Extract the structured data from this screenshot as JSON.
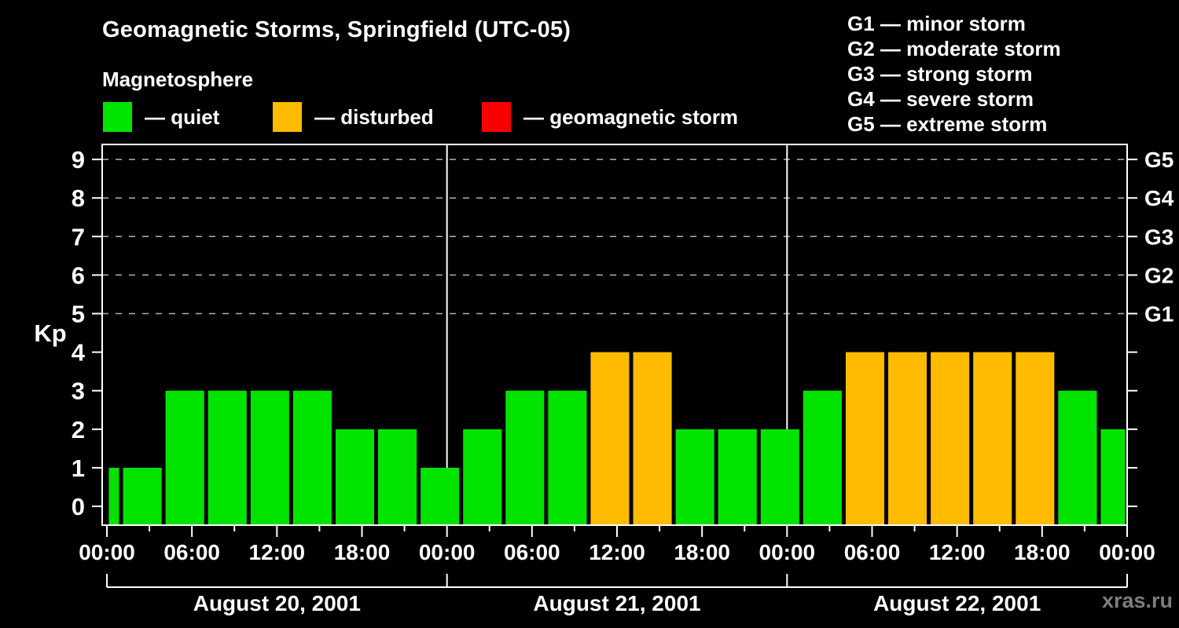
{
  "header": {
    "title": "Geomagnetic Storms, Springfield (UTC-05)",
    "subtitle": "Magnetosphere",
    "watermark": "xras.ru"
  },
  "legend": {
    "items": [
      {
        "label": "— quiet",
        "state": "quiet",
        "color": "#00e400"
      },
      {
        "label": "— disturbed",
        "state": "disturbed",
        "color": "#ffbb00"
      },
      {
        "label": "— geomagnetic storm",
        "state": "storm",
        "color": "#f80000"
      }
    ]
  },
  "g_scale_legend": {
    "lines": [
      "G1 — minor storm",
      "G2 — moderate storm",
      "G3 — strong storm",
      "G4 — severe storm",
      "G5 — extreme storm"
    ]
  },
  "chart_data": {
    "type": "bar",
    "title": "Geomagnetic Storms, Springfield (UTC-05)",
    "ylabel": "Kp",
    "ylim": [
      0,
      9
    ],
    "x_hours_range": [
      0,
      72
    ],
    "grid": "dashed horizontal lines at Kp 5-9 only",
    "legend_position": "top",
    "y_ticks": [
      0,
      1,
      2,
      3,
      4,
      5,
      6,
      7,
      8,
      9
    ],
    "g_level_gridlines": [
      5,
      6,
      7,
      8,
      9
    ],
    "right_axis_labels": [
      {
        "kp": 5,
        "label": "G1"
      },
      {
        "kp": 6,
        "label": "G2"
      },
      {
        "kp": 7,
        "label": "G3"
      },
      {
        "kp": 8,
        "label": "G4"
      },
      {
        "kp": 9,
        "label": "G5"
      }
    ],
    "x_ticks": [
      {
        "hour": 0,
        "label": "00:00"
      },
      {
        "hour": 6,
        "label": "06:00"
      },
      {
        "hour": 12,
        "label": "12:00"
      },
      {
        "hour": 18,
        "label": "18:00"
      },
      {
        "hour": 24,
        "label": "00:00"
      },
      {
        "hour": 30,
        "label": "06:00"
      },
      {
        "hour": 36,
        "label": "12:00"
      },
      {
        "hour": 42,
        "label": "18:00"
      },
      {
        "hour": 48,
        "label": "00:00"
      },
      {
        "hour": 54,
        "label": "06:00"
      },
      {
        "hour": 60,
        "label": "12:00"
      },
      {
        "hour": 66,
        "label": "18:00"
      },
      {
        "hour": 72,
        "label": "00:00"
      }
    ],
    "minor_tick_hours": [
      3,
      9,
      15,
      21,
      27,
      33,
      39,
      45,
      51,
      57,
      63,
      69
    ],
    "day_boundaries_hours": [
      24,
      48
    ],
    "days": [
      {
        "label": "August 20, 2001",
        "start_hour": 0,
        "end_hour": 24
      },
      {
        "label": "August 21, 2001",
        "start_hour": 24,
        "end_hour": 48
      },
      {
        "label": "August 22, 2001",
        "start_hour": 48,
        "end_hour": 72
      }
    ],
    "bars": [
      {
        "start_hour": 0,
        "end_hour": 1,
        "kp": 1,
        "state": "quiet"
      },
      {
        "start_hour": 1,
        "end_hour": 4,
        "kp": 1,
        "state": "quiet"
      },
      {
        "start_hour": 4,
        "end_hour": 7,
        "kp": 3,
        "state": "quiet"
      },
      {
        "start_hour": 7,
        "end_hour": 10,
        "kp": 3,
        "state": "quiet"
      },
      {
        "start_hour": 10,
        "end_hour": 13,
        "kp": 3,
        "state": "quiet"
      },
      {
        "start_hour": 13,
        "end_hour": 16,
        "kp": 3,
        "state": "quiet"
      },
      {
        "start_hour": 16,
        "end_hour": 19,
        "kp": 2,
        "state": "quiet"
      },
      {
        "start_hour": 19,
        "end_hour": 22,
        "kp": 2,
        "state": "quiet"
      },
      {
        "start_hour": 22,
        "end_hour": 25,
        "kp": 1,
        "state": "quiet"
      },
      {
        "start_hour": 25,
        "end_hour": 28,
        "kp": 2,
        "state": "quiet"
      },
      {
        "start_hour": 28,
        "end_hour": 31,
        "kp": 3,
        "state": "quiet"
      },
      {
        "start_hour": 31,
        "end_hour": 34,
        "kp": 3,
        "state": "quiet"
      },
      {
        "start_hour": 34,
        "end_hour": 37,
        "kp": 4,
        "state": "disturbed"
      },
      {
        "start_hour": 37,
        "end_hour": 40,
        "kp": 4,
        "state": "disturbed"
      },
      {
        "start_hour": 40,
        "end_hour": 43,
        "kp": 2,
        "state": "quiet"
      },
      {
        "start_hour": 43,
        "end_hour": 46,
        "kp": 2,
        "state": "quiet"
      },
      {
        "start_hour": 46,
        "end_hour": 49,
        "kp": 2,
        "state": "quiet"
      },
      {
        "start_hour": 49,
        "end_hour": 52,
        "kp": 3,
        "state": "quiet"
      },
      {
        "start_hour": 52,
        "end_hour": 55,
        "kp": 4,
        "state": "disturbed"
      },
      {
        "start_hour": 55,
        "end_hour": 58,
        "kp": 4,
        "state": "disturbed"
      },
      {
        "start_hour": 58,
        "end_hour": 61,
        "kp": 4,
        "state": "disturbed"
      },
      {
        "start_hour": 61,
        "end_hour": 64,
        "kp": 4,
        "state": "disturbed"
      },
      {
        "start_hour": 64,
        "end_hour": 67,
        "kp": 4,
        "state": "disturbed"
      },
      {
        "start_hour": 67,
        "end_hour": 70,
        "kp": 3,
        "state": "quiet"
      },
      {
        "start_hour": 70,
        "end_hour": 72,
        "kp": 2,
        "state": "quiet"
      }
    ],
    "colors": {
      "quiet": "#00e400",
      "disturbed": "#ffbb00",
      "storm": "#f80000",
      "axis": "#ffffff",
      "grid": "#b0b0b0",
      "background": "#000000",
      "watermark": "#7d7d7d"
    }
  }
}
